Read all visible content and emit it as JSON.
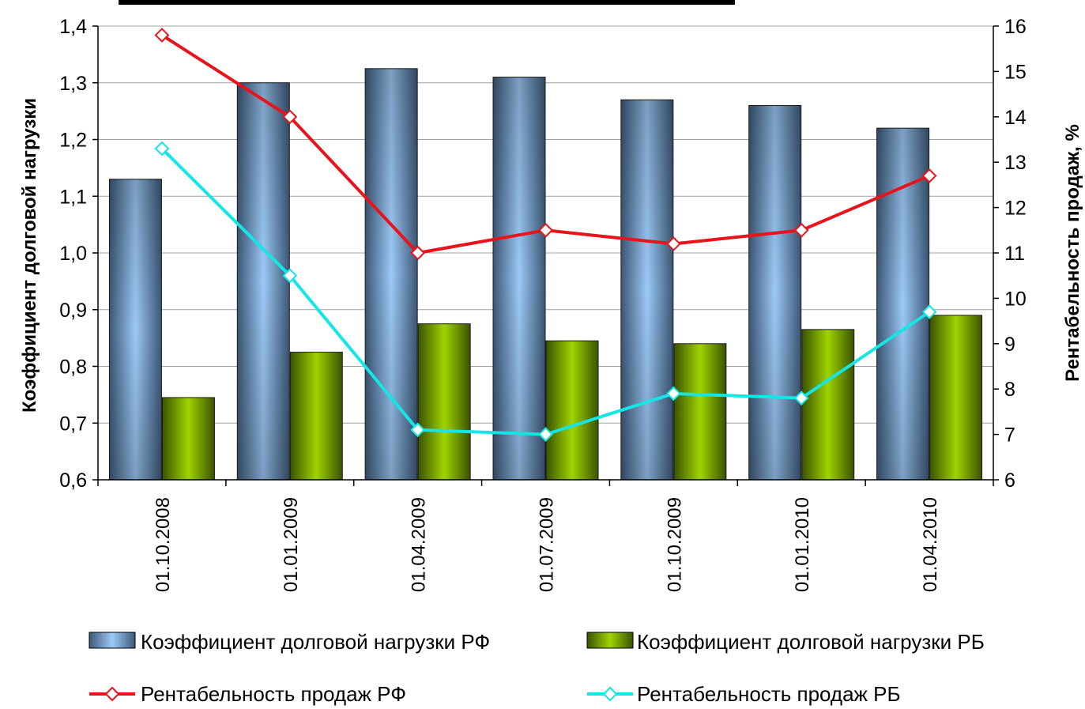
{
  "chart_data": {
    "type": "bar",
    "categories": [
      "01.10.2008",
      "01.01.2009",
      "01.04.2009",
      "01.07.2009",
      "01.10.2009",
      "01.01.2010",
      "01.04.2010"
    ],
    "y_left": {
      "label": "Коэффициент долговой нагрузки",
      "min": 0.6,
      "max": 1.4,
      "ticks": [
        "0,6",
        "0,7",
        "0,8",
        "0,9",
        "1,0",
        "1,1",
        "1,2",
        "1,3",
        "1,4"
      ]
    },
    "y_right": {
      "label": "Рентабельность продаж, %",
      "min": 6,
      "max": 16,
      "ticks": [
        "6",
        "7",
        "8",
        "9",
        "10",
        "11",
        "12",
        "13",
        "14",
        "15",
        "16"
      ]
    },
    "bar_series": [
      {
        "name": "Коэффициент долговой нагрузки РФ",
        "axis": "left",
        "color": "#5f87b0",
        "values": [
          1.13,
          1.3,
          1.325,
          1.31,
          1.27,
          1.26,
          1.22
        ]
      },
      {
        "name": "Коэффициент долговой нагрузки РБ",
        "axis": "left",
        "color": "#6b9a00",
        "values": [
          0.745,
          0.825,
          0.875,
          0.845,
          0.84,
          0.865,
          0.89
        ]
      }
    ],
    "line_series": [
      {
        "name": "Рентабельность продаж РФ",
        "axis": "right",
        "color": "#e8141c",
        "values": [
          15.8,
          14.0,
          11.0,
          11.5,
          11.2,
          11.5,
          12.7
        ]
      },
      {
        "name": "Рентабельность продаж РБ",
        "axis": "right",
        "color": "#14e6e6",
        "values": [
          13.3,
          10.5,
          7.1,
          7.0,
          7.9,
          7.8,
          9.7
        ]
      }
    ],
    "grid": true,
    "legend_position": "bottom"
  }
}
